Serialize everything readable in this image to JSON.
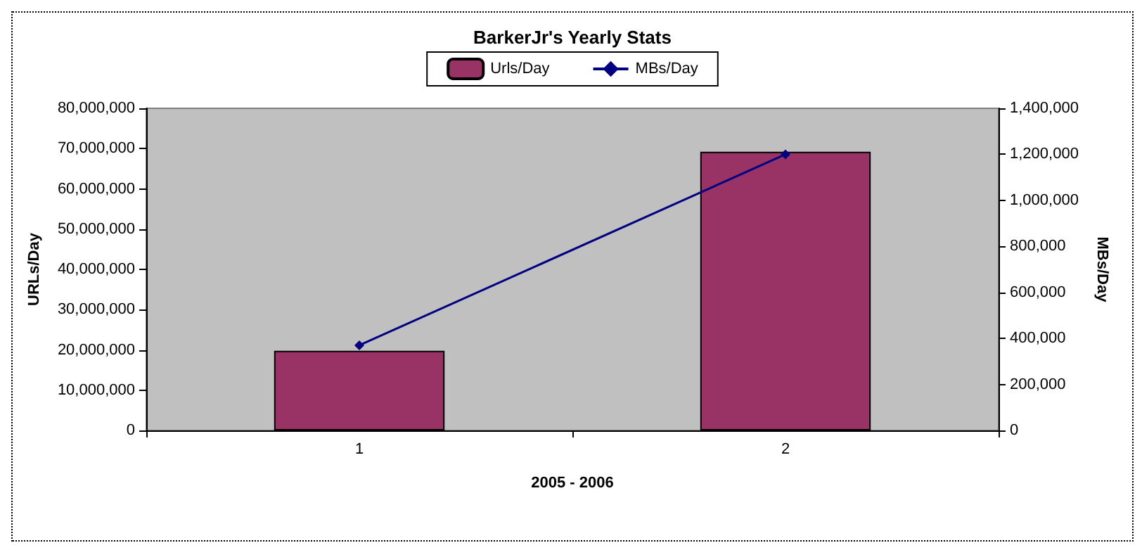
{
  "chart_data": {
    "type": "bar",
    "title": "BarkerJr's Yearly Stats",
    "xlabel": "2005 - 2006",
    "ylabel": "URLs/Day",
    "y2label": "MBs/Day",
    "categories": [
      "1",
      "2"
    ],
    "series": [
      {
        "name": "Urls/Day",
        "color": "#993366",
        "values": [
          19800000,
          69200000
        ]
      },
      {
        "name": "MBs/Day",
        "type": "line",
        "color": "#000080",
        "axis": "y2",
        "values": [
          370000,
          1200000
        ]
      }
    ],
    "ylim": [
      0,
      80000000
    ],
    "yticks": [
      0,
      {
        "value": 10000000,
        "label": "10,000,000"
      },
      {
        "value": 20000000,
        "label": "20,000,000"
      },
      {
        "value": 30000000,
        "label": "30,000,000"
      },
      {
        "value": 40000000,
        "label": "40,000,000"
      },
      {
        "value": 50000000,
        "label": "50,000,000"
      },
      {
        "value": 60000000,
        "label": "60,000,000"
      },
      {
        "value": 70000000,
        "label": "70,000,000"
      },
      {
        "value": 80000000,
        "label": "80,000,000"
      }
    ],
    "y2lim": [
      0,
      1400000
    ],
    "y2ticks": [
      0,
      {
        "value": 200000,
        "label": "200,000"
      },
      {
        "value": 400000,
        "label": "400,000"
      },
      {
        "value": 600000,
        "label": "600,000"
      },
      {
        "value": 800000,
        "label": "800,000"
      },
      {
        "value": 1000000,
        "label": "1,000,000"
      },
      {
        "value": 1200000,
        "label": "1,200,000"
      },
      {
        "value": 1400000,
        "label": "1,400,000"
      }
    ],
    "grid": false,
    "legend": "top",
    "marker": "diamond"
  }
}
